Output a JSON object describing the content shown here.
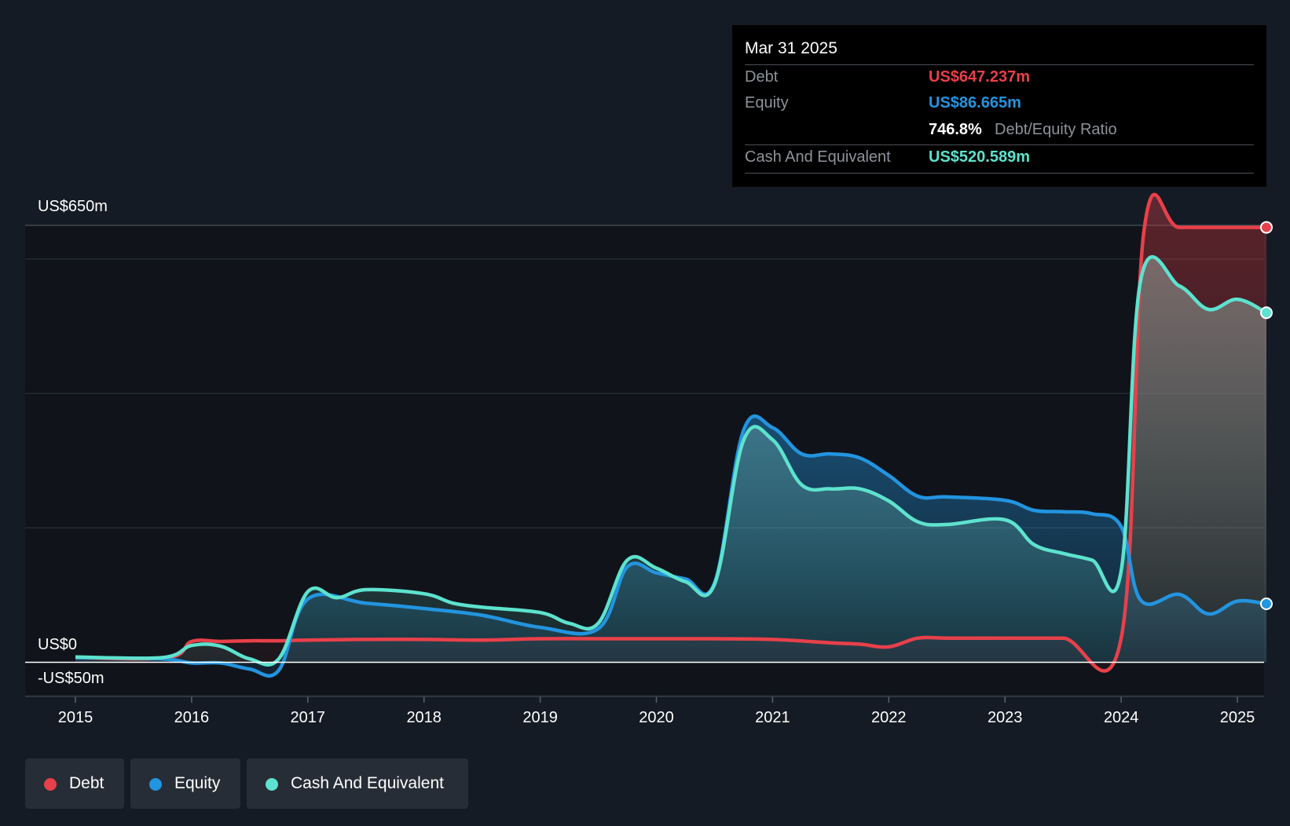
{
  "chart_data": {
    "type": "area",
    "title": "",
    "xlabel": "",
    "ylabel": "",
    "ylim": [
      -50,
      650
    ],
    "y_tick_labels": {
      "top": "US$650m",
      "zero": "US$0",
      "bottom": "-US$50m"
    },
    "x_tick_labels": [
      "2015",
      "2016",
      "2017",
      "2018",
      "2019",
      "2020",
      "2021",
      "2022",
      "2023",
      "2024",
      "2025"
    ],
    "series": [
      {
        "name": "Debt",
        "color": "#e8404a",
        "x": [
          2015.0,
          2015.8,
          2016.0,
          2016.25,
          2016.5,
          2016.75,
          2017.0,
          2017.5,
          2018.0,
          2018.5,
          2019.0,
          2019.5,
          2020.0,
          2020.5,
          2021.0,
          2021.5,
          2021.75,
          2022.0,
          2022.25,
          2022.5,
          2023.0,
          2023.5,
          2024.0,
          2024.2,
          2024.5,
          2025.0,
          2025.25
        ],
        "values": [
          7,
          7,
          31,
          31,
          32,
          32,
          33,
          34,
          34,
          33,
          35,
          35,
          35,
          35,
          34,
          29,
          27,
          23,
          36,
          36,
          36,
          36,
          36,
          647,
          647,
          647,
          647
        ]
      },
      {
        "name": "Equity",
        "color": "#2394df",
        "x": [
          2015.0,
          2015.75,
          2016.0,
          2016.25,
          2016.5,
          2016.75,
          2017.0,
          2017.5,
          2018.0,
          2018.5,
          2019.0,
          2019.5,
          2019.75,
          2020.0,
          2020.25,
          2020.5,
          2020.75,
          2021.0,
          2021.25,
          2021.5,
          2021.75,
          2022.0,
          2022.25,
          2022.5,
          2023.0,
          2023.25,
          2023.5,
          2023.75,
          2024.0,
          2024.17,
          2024.5,
          2024.75,
          2025.0,
          2025.25
        ],
        "values": [
          7,
          5,
          -1,
          -1,
          -10,
          -12,
          94,
          88,
          80,
          70,
          52,
          50,
          142,
          133,
          124,
          118,
          345,
          349,
          310,
          310,
          304,
          278,
          247,
          246,
          241,
          226,
          224,
          221,
          202,
          92,
          101,
          72,
          91,
          87
        ]
      },
      {
        "name": "Cash And Equivalent",
        "color": "#5de2ce",
        "x": [
          2015.0,
          2015.75,
          2016.0,
          2016.25,
          2016.5,
          2016.75,
          2017.0,
          2017.25,
          2017.5,
          2018.0,
          2018.25,
          2018.5,
          2019.0,
          2019.25,
          2019.5,
          2019.75,
          2020.0,
          2020.25,
          2020.5,
          2020.75,
          2021.0,
          2021.25,
          2021.5,
          2021.75,
          2022.0,
          2022.25,
          2022.5,
          2023.0,
          2023.25,
          2023.5,
          2023.75,
          2024.0,
          2024.17,
          2024.5,
          2024.75,
          2025.0,
          2025.25
        ],
        "values": [
          8,
          7,
          25,
          24,
          5,
          5,
          105,
          96,
          108,
          102,
          88,
          82,
          74,
          58,
          58,
          152,
          140,
          120,
          116,
          330,
          331,
          264,
          258,
          258,
          240,
          209,
          205,
          212,
          175,
          162,
          152,
          136,
          570,
          560,
          525,
          540,
          520
        ]
      }
    ]
  },
  "tooltip": {
    "date": "Mar 31 2025",
    "debt_label": "Debt",
    "debt_value": "US$647.237m",
    "equity_label": "Equity",
    "equity_value": "US$86.665m",
    "ratio_value": "746.8%",
    "ratio_label": "Debt/Equity Ratio",
    "cash_label": "Cash And Equivalent",
    "cash_value": "US$520.589m"
  },
  "legend": [
    {
      "label": "Debt",
      "color": "#e8404a"
    },
    {
      "label": "Equity",
      "color": "#2394df"
    },
    {
      "label": "Cash And Equivalent",
      "color": "#5de2ce"
    }
  ]
}
